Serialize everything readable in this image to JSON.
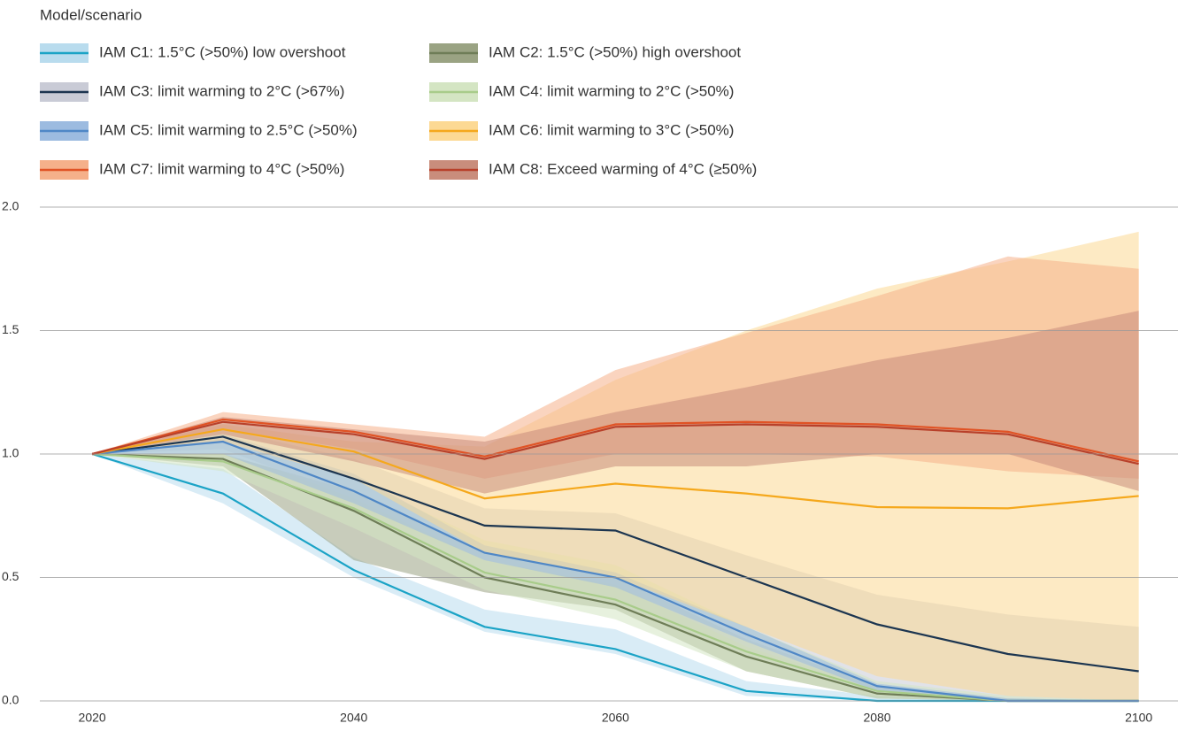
{
  "chart_data": {
    "type": "line",
    "legend_title": "Model/scenario",
    "x": [
      2020,
      2030,
      2040,
      2050,
      2060,
      2070,
      2080,
      2090,
      2100
    ],
    "xlim": [
      2016,
      2103
    ],
    "xticks": [
      2020,
      2040,
      2060,
      2080,
      2100
    ],
    "ylim": [
      0,
      2
    ],
    "yticks": [
      {
        "value": 0,
        "label": "0.0"
      },
      0.5,
      {
        "value": 1,
        "label": "1.0"
      },
      1.5,
      {
        "value": 2,
        "label": "2.0"
      }
    ],
    "grid": true,
    "series": [
      {
        "name": "IAM C1: 1.5°C (>50%) low overshoot",
        "color": "#1ba3c6",
        "band_color": "#b9dcee",
        "values": [
          1.0,
          0.84,
          0.53,
          0.3,
          0.21,
          0.04,
          0.0,
          0.0,
          0.0
        ],
        "upper": [
          1.0,
          0.94,
          0.58,
          0.37,
          0.29,
          0.08,
          0.02,
          0.0,
          0.0
        ],
        "lower": [
          1.0,
          0.8,
          0.5,
          0.28,
          0.19,
          0.02,
          0.0,
          0.0,
          0.0
        ]
      },
      {
        "name": "IAM C2: 1.5°C (>50%) high overshoot",
        "color": "#6e7d57",
        "band_color": "#9aa383",
        "values": [
          1.0,
          0.98,
          0.77,
          0.5,
          0.39,
          0.18,
          0.03,
          0.0,
          0.0
        ],
        "upper": [
          1.0,
          1.0,
          0.85,
          0.6,
          0.5,
          0.25,
          0.06,
          0.01,
          0.0
        ],
        "lower": [
          1.0,
          0.95,
          0.57,
          0.44,
          0.37,
          0.12,
          0.01,
          0.0,
          0.0
        ]
      },
      {
        "name": "IAM C3: limit warming to 2°C (>67%)",
        "color": "#1c3550",
        "band_color": "#c9cbd6",
        "values": [
          1.0,
          1.07,
          0.9,
          0.71,
          0.69,
          0.5,
          0.31,
          0.19,
          0.12
        ],
        "upper": [
          1.0,
          1.1,
          0.98,
          0.78,
          0.76,
          0.59,
          0.43,
          0.35,
          0.3
        ],
        "lower": [
          1.0,
          1.02,
          0.82,
          0.57,
          0.47,
          0.22,
          0.05,
          0.0,
          0.0
        ]
      },
      {
        "name": "IAM C4: limit warming to 2°C (>50%)",
        "color": "#a8cc8a",
        "band_color": "#d4e5c3",
        "values": [
          1.0,
          0.97,
          0.78,
          0.52,
          0.41,
          0.2,
          0.04,
          0.0,
          0.0
        ],
        "upper": [
          1.0,
          1.05,
          0.9,
          0.65,
          0.55,
          0.3,
          0.08,
          0.02,
          0.0
        ],
        "lower": [
          1.0,
          0.93,
          0.7,
          0.45,
          0.33,
          0.12,
          0.01,
          0.0,
          0.0
        ]
      },
      {
        "name": "IAM C5: limit warming to 2.5°C (>50%)",
        "color": "#4f87c6",
        "band_color": "#9cbbe0",
        "values": [
          1.0,
          1.05,
          0.85,
          0.6,
          0.5,
          0.27,
          0.06,
          0.0,
          0.0
        ],
        "upper": [
          1.0,
          1.08,
          0.92,
          0.63,
          0.52,
          0.3,
          0.07,
          0.01,
          0.0
        ],
        "lower": [
          1.0,
          1.0,
          0.8,
          0.57,
          0.46,
          0.24,
          0.04,
          0.0,
          0.0
        ]
      },
      {
        "name": "IAM C6: limit warming to 3°C (>50%)",
        "color": "#f5a81c",
        "band_color": "#fcd994",
        "values": [
          1.0,
          1.1,
          1.01,
          0.82,
          0.88,
          0.84,
          0.785,
          0.78,
          0.83
        ],
        "upper": [
          1.0,
          1.12,
          1.05,
          1.03,
          1.3,
          1.5,
          1.67,
          1.78,
          1.9
        ],
        "lower": [
          1.0,
          1.05,
          0.9,
          0.6,
          0.5,
          0.3,
          0.1,
          0.02,
          0.0
        ]
      },
      {
        "name": "IAM C7: limit warming to 4°C (>50%)",
        "color": "#e05325",
        "band_color": "#f5b08a",
        "values": [
          1.0,
          1.14,
          1.09,
          0.99,
          1.12,
          1.13,
          1.12,
          1.09,
          0.97
        ],
        "upper": [
          1.0,
          1.17,
          1.12,
          1.07,
          1.34,
          1.49,
          1.64,
          1.8,
          1.75
        ],
        "lower": [
          1.0,
          1.1,
          1.02,
          0.9,
          1.0,
          1.0,
          0.99,
          0.93,
          0.9
        ]
      },
      {
        "name": "IAM C8: Exceed warming of 4°C (≥50%)",
        "color": "#b8402a",
        "band_color": "#c98d7c",
        "values": [
          1.0,
          1.13,
          1.08,
          0.98,
          1.11,
          1.12,
          1.11,
          1.08,
          0.96
        ],
        "upper": [
          1.0,
          1.15,
          1.1,
          1.05,
          1.17,
          1.27,
          1.38,
          1.47,
          1.58
        ],
        "lower": [
          1.0,
          1.08,
          0.97,
          0.84,
          0.95,
          0.95,
          1.0,
          1.0,
          0.85
        ]
      }
    ]
  }
}
